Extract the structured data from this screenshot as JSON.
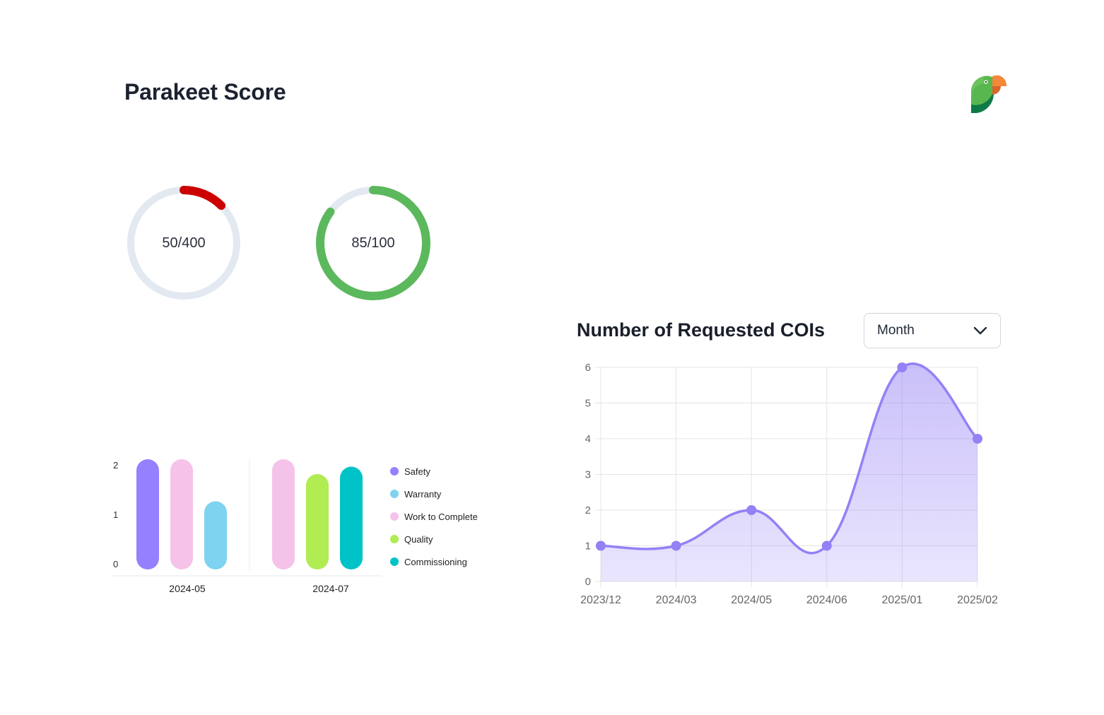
{
  "page": {
    "title": "Parakeet Score"
  },
  "logo": {
    "icon": "parakeet-logo-icon"
  },
  "gauges": [
    {
      "label": "50/400",
      "value": 50,
      "max": 400,
      "color": "#cc0000"
    },
    {
      "label": "85/100",
      "value": 85,
      "max": 100,
      "color": "#5cb85c"
    }
  ],
  "bar_chart": {
    "chart_data": {
      "type": "bar",
      "categories": [
        "2024-05",
        "2024-07"
      ],
      "y_ticks": [
        "0",
        "1",
        "2"
      ],
      "ylim": [
        0,
        2
      ],
      "legend_position": "right",
      "legend": [
        {
          "name": "Safety",
          "color": "#9580ff"
        },
        {
          "name": "Warranty",
          "color": "#7dd3f0"
        },
        {
          "name": "Work to Complete",
          "color": "#f5c2ea"
        },
        {
          "name": "Quality",
          "color": "#b0ec52"
        },
        {
          "name": "Commissioning",
          "color": "#00c3c8"
        }
      ],
      "groups": [
        {
          "category": "2024-05",
          "bars": [
            {
              "series": "Safety",
              "value": 2
            },
            {
              "series": "Work to Complete",
              "value": 2
            },
            {
              "series": "Warranty",
              "value": 1.15
            }
          ]
        },
        {
          "category": "2024-07",
          "bars": [
            {
              "series": "Work to Complete",
              "value": 2
            },
            {
              "series": "Quality",
              "value": 1.7
            },
            {
              "series": "Commissioning",
              "value": 1.85
            }
          ]
        }
      ]
    }
  },
  "line_chart": {
    "title": "Number of Requested COIs",
    "dropdown": {
      "selected": "Month",
      "icon": "chevron-down-icon"
    },
    "chart_data": {
      "type": "area",
      "x": [
        "2023/12",
        "2024/03",
        "2024/05",
        "2024/06",
        "2025/01",
        "2025/02"
      ],
      "values": [
        1,
        1,
        2,
        1,
        6,
        4
      ],
      "ylim": [
        0,
        6
      ],
      "y_ticks": [
        "0",
        "1",
        "2",
        "3",
        "4",
        "5",
        "6"
      ],
      "grid": true,
      "color": "#9580f5"
    }
  }
}
